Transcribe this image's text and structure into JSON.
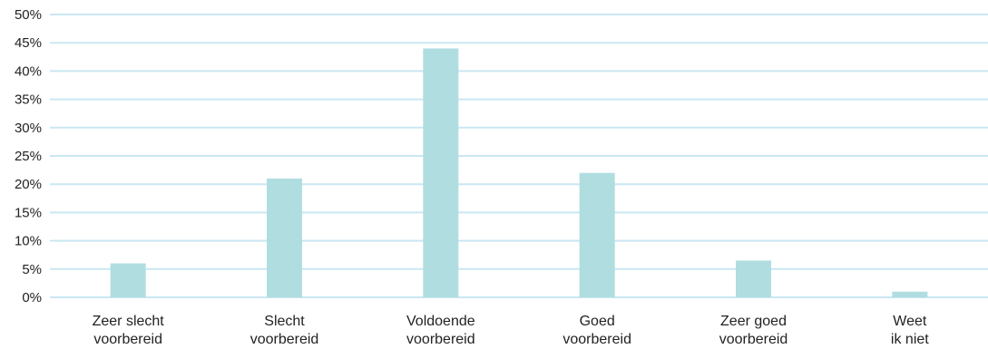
{
  "chart_data": {
    "type": "bar",
    "title": "",
    "xlabel": "",
    "ylabel": "",
    "categories": [
      [
        "Zeer slecht",
        "voorbereid"
      ],
      [
        "Slecht",
        "voorbereid"
      ],
      [
        "Voldoende",
        "voorbereid"
      ],
      [
        "Goed",
        "voorbereid"
      ],
      [
        "Zeer goed",
        "voorbereid"
      ],
      [
        "Weet",
        "ik niet"
      ]
    ],
    "values": [
      6,
      21,
      44,
      22,
      6.5,
      1
    ],
    "ylim": [
      0,
      50
    ],
    "ytick_step": 5,
    "ytick_suffix": "%",
    "grid": true,
    "colors": {
      "bar": "#b0dde0",
      "grid": "#c9e7f3",
      "text": "#222222"
    }
  }
}
